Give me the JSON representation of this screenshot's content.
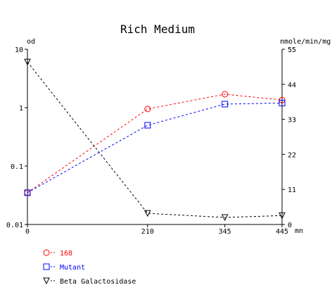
{
  "chart_data": {
    "type": "line",
    "title": "Rich Medium",
    "x_unit": "mn",
    "left_axis_label": "od",
    "right_axis_label": "nmole/min/mg",
    "x": [
      0,
      210,
      345,
      445
    ],
    "x_ticks": [
      "0",
      "210",
      "345",
      "445"
    ],
    "x_range": [
      0,
      445
    ],
    "left_scale": "log",
    "left_range": [
      0.01,
      10
    ],
    "left_ticks": [
      {
        "value": 10,
        "label": "10"
      },
      {
        "value": 1,
        "label": "1"
      },
      {
        "value": 0.1,
        "label": "0.1"
      },
      {
        "value": 0.01,
        "label": "0.01"
      }
    ],
    "right_scale": "linear",
    "right_range": [
      0,
      55
    ],
    "right_ticks": [
      {
        "value": 55,
        "label": "55"
      },
      {
        "value": 44,
        "label": "44"
      },
      {
        "value": 33,
        "label": "33"
      },
      {
        "value": 22,
        "label": "22"
      },
      {
        "value": 11,
        "label": "11"
      },
      {
        "value": 0,
        "label": "0"
      }
    ],
    "grid": false,
    "legend_position": "bottom-left",
    "series": [
      {
        "name": "168",
        "axis": "left",
        "color": "#ff0000",
        "marker": "circle",
        "values": [
          0.035,
          0.95,
          1.7,
          1.35
        ]
      },
      {
        "name": "Mutant",
        "axis": "left",
        "color": "#0000ff",
        "marker": "square",
        "values": [
          0.035,
          0.5,
          1.15,
          1.2
        ]
      },
      {
        "name": "Beta Galactosidase",
        "axis": "right",
        "color": "#000000",
        "marker": "triangle-down",
        "values": [
          51,
          3.5,
          2.2,
          2.8
        ]
      }
    ]
  }
}
